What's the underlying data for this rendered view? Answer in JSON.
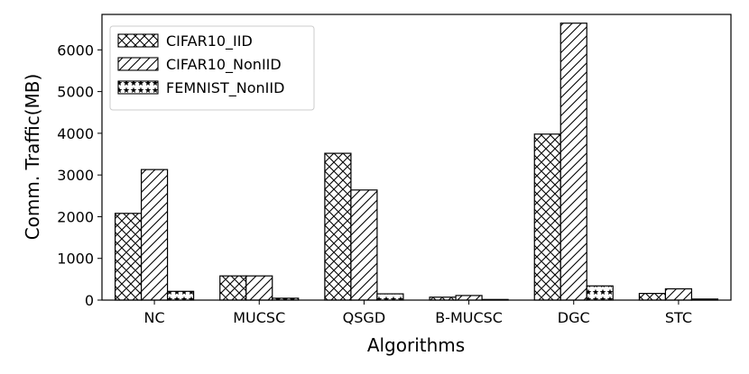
{
  "chart_data": {
    "type": "bar",
    "title": "",
    "xlabel": "Algorithms",
    "ylabel": "Comm. Traffic(MB)",
    "categories": [
      "NC",
      "MUCSC",
      "QSGD",
      "B-MUCSC",
      "DGC",
      "STC"
    ],
    "ylim": [
      0,
      6850
    ],
    "yticks": [
      0,
      1000,
      2000,
      3000,
      4000,
      5000,
      6000
    ],
    "grid": false,
    "legend_position": "top-left",
    "series": [
      {
        "name": "CIFAR10_IID",
        "pattern": "crosshatch",
        "values": [
          2080,
          580,
          3520,
          70,
          3980,
          160
        ]
      },
      {
        "name": "CIFAR10_NonIID",
        "pattern": "diagonal",
        "values": [
          3130,
          580,
          2640,
          110,
          6640,
          270
        ]
      },
      {
        "name": "FEMNIST_NonIID",
        "pattern": "stars",
        "values": [
          210,
          45,
          150,
          15,
          340,
          25
        ]
      }
    ]
  }
}
